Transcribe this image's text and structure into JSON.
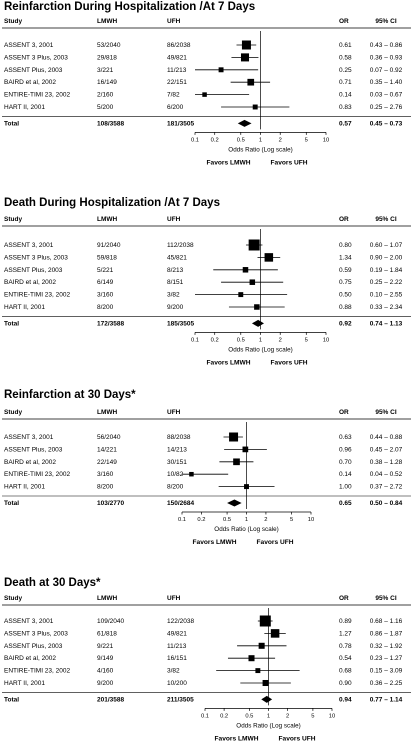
{
  "chart_data": [
    {
      "type": "forest",
      "title": "Reinfarction During Hospitalization /At 7 Days",
      "columns": [
        "Study",
        "LMWH",
        "UFH",
        "OR",
        "95% CI"
      ],
      "studies": [
        {
          "study": "ASSENT 3, 2001",
          "lmwh": "53/2040",
          "ufh": "86/2038",
          "or": 0.61,
          "or_label": "0.61",
          "ci": [
            0.43,
            0.86
          ],
          "ci_label": "0.43 – 0.86"
        },
        {
          "study": "ASSENT 3 Plus, 2003",
          "lmwh": "29/818",
          "ufh": "49/821",
          "or": 0.58,
          "or_label": "0.58",
          "ci": [
            0.36,
            0.93
          ],
          "ci_label": "0.36 – 0.93"
        },
        {
          "study": "ASSENT Plus, 2003",
          "lmwh": "3/221",
          "ufh": "11/213",
          "or": 0.25,
          "or_label": "0.25",
          "ci": [
            0.07,
            0.92
          ],
          "ci_label": "0.07 – 0.92"
        },
        {
          "study": "BAIRD et al, 2002",
          "lmwh": "16/149",
          "ufh": "22/151",
          "or": 0.71,
          "or_label": "0.71",
          "ci": [
            0.35,
            1.4
          ],
          "ci_label": "0.35 – 1.40"
        },
        {
          "study": "ENTIRE-TIMI 23, 2002",
          "lmwh": "2/160",
          "ufh": "7/82",
          "or": 0.14,
          "or_label": "0.14",
          "ci": [
            0.03,
            0.67
          ],
          "ci_label": "0.03 – 0.67"
        },
        {
          "study": "HART II, 2001",
          "lmwh": "5/200",
          "ufh": "6/200",
          "or": 0.83,
          "or_label": "0.83",
          "ci": [
            0.25,
            2.76
          ],
          "ci_label": "0.25 – 2.76"
        }
      ],
      "total": {
        "study": "Total",
        "lmwh": "108/3588",
        "ufh": "181/3505",
        "or": 0.57,
        "or_label": "0.57",
        "ci": [
          0.45,
          0.73
        ],
        "ci_label": "0.45 – 0.73"
      },
      "weights": [
        1.0,
        0.8,
        0.3,
        0.55,
        0.25,
        0.3
      ],
      "x_scale": "log",
      "xlim": [
        0.1,
        10
      ],
      "xticks": [
        "0.1",
        "0.2",
        "0.5",
        "1",
        "2",
        "5",
        "10"
      ],
      "xlabel": "Odds Ratio (Log scale)",
      "favors_left": "Favors LMWH",
      "favors_right": "Favors UFH"
    },
    {
      "type": "forest",
      "title": "Death During Hospitalization /At 7 Days",
      "columns": [
        "Study",
        "LMWH",
        "UFH",
        "OR",
        "95% CI"
      ],
      "studies": [
        {
          "study": "ASSENT 3, 2001",
          "lmwh": "91/2040",
          "ufh": "112/2038",
          "or": 0.8,
          "or_label": "0.80",
          "ci": [
            0.6,
            1.07
          ],
          "ci_label": "0.60 – 1.07"
        },
        {
          "study": "ASSENT 3 Plus, 2003",
          "lmwh": "59/818",
          "ufh": "45/821",
          "or": 1.34,
          "or_label": "1.34",
          "ci": [
            0.9,
            2.0
          ],
          "ci_label": "0.90 – 2.00"
        },
        {
          "study": "ASSENT Plus, 2003",
          "lmwh": "5/221",
          "ufh": "8/213",
          "or": 0.59,
          "or_label": "0.59",
          "ci": [
            0.19,
            1.84
          ],
          "ci_label": "0.19 – 1.84"
        },
        {
          "study": "BAIRD et al, 2002",
          "lmwh": "6/149",
          "ufh": "8/151",
          "or": 0.75,
          "or_label": "0.75",
          "ci": [
            0.25,
            2.22
          ],
          "ci_label": "0.25 – 2.22"
        },
        {
          "study": "ENTIRE-TIMI 23, 2002",
          "lmwh": "3/160",
          "ufh": "3/82",
          "or": 0.5,
          "or_label": "0.50",
          "ci": [
            0.1,
            2.55
          ],
          "ci_label": "0.10 – 2.55"
        },
        {
          "study": "HART II, 2001",
          "lmwh": "8/200",
          "ufh": "9/200",
          "or": 0.88,
          "or_label": "0.88",
          "ci": [
            0.33,
            2.34
          ],
          "ci_label": "0.33 – 2.34"
        }
      ],
      "total": {
        "study": "Total",
        "lmwh": "172/3588",
        "ufh": "185/3505",
        "or": 0.92,
        "or_label": "0.92",
        "ci": [
          0.74,
          1.13
        ],
        "ci_label": "0.74 – 1.13"
      },
      "weights": [
        1.0,
        0.6,
        0.25,
        0.25,
        0.2,
        0.25
      ],
      "x_scale": "log",
      "xlim": [
        0.1,
        10
      ],
      "xticks": [
        "0.1",
        "0.2",
        "0.5",
        "1",
        "2",
        "5",
        "10"
      ],
      "xlabel": "Odds Ratio (Log scale)",
      "favors_left": "Favors LMWH",
      "favors_right": "Favors UFH"
    },
    {
      "type": "forest",
      "title": "Reinfarction at 30 Days*",
      "columns": [
        "Study",
        "LMWH",
        "UFH",
        "OR",
        "95% CI"
      ],
      "studies": [
        {
          "study": "ASSENT 3, 2001",
          "lmwh": "56/2040",
          "ufh": "88/2038",
          "or": 0.63,
          "or_label": "0.63",
          "ci": [
            0.44,
            0.88
          ],
          "ci_label": "0.44 – 0.88"
        },
        {
          "study": "ASSENT Plus, 2003",
          "lmwh": "14/221",
          "ufh": "14/213",
          "or": 0.96,
          "or_label": "0.96",
          "ci": [
            0.45,
            2.07
          ],
          "ci_label": "0.45 – 2.07"
        },
        {
          "study": "BAIRD et al, 2002",
          "lmwh": "22/149",
          "ufh": "30/151",
          "or": 0.7,
          "or_label": "0.70",
          "ci": [
            0.38,
            1.28
          ],
          "ci_label": "0.38 – 1.28"
        },
        {
          "study": "ENTIRE-TIMI 23, 2002",
          "lmwh": "3/160",
          "ufh": "10/82",
          "or": 0.14,
          "or_label": "0.14",
          "ci": [
            0.04,
            0.52
          ],
          "ci_label": "0.04 – 0.52"
        },
        {
          "study": "HART II, 2001",
          "lmwh": "8/200",
          "ufh": "8/200",
          "or": 1.0,
          "or_label": "1.00",
          "ci": [
            0.37,
            2.72
          ],
          "ci_label": "0.37 – 2.72"
        }
      ],
      "total": {
        "study": "Total",
        "lmwh": "103/2770",
        "ufh": "150/2684",
        "or": 0.65,
        "or_label": "0.65",
        "ci": [
          0.5,
          0.84
        ],
        "ci_label": "0.50 – 0.84"
      },
      "weights": [
        1.0,
        0.4,
        0.55,
        0.25,
        0.3
      ],
      "x_scale": "log",
      "xlim": [
        0.1,
        10
      ],
      "xticks": [
        "0.1",
        "0.2",
        "0.5",
        "1",
        "2",
        "5",
        "10"
      ],
      "xlabel": "Odds Ratio (Log scale)",
      "favors_left": "Favors LMWH",
      "favors_right": "Favors UFH"
    },
    {
      "type": "forest",
      "title": "Death at 30 Days*",
      "columns": [
        "Study",
        "LMWH",
        "UFH",
        "OR",
        "95% CI"
      ],
      "studies": [
        {
          "study": "ASSENT 3, 2001",
          "lmwh": "109/2040",
          "ufh": "122/2038",
          "or": 0.89,
          "or_label": "0.89",
          "ci": [
            0.68,
            1.16
          ],
          "ci_label": "0.68 – 1.16"
        },
        {
          "study": "ASSENT 3 Plus, 2003",
          "lmwh": "61/818",
          "ufh": "49/821",
          "or": 1.27,
          "or_label": "1.27",
          "ci": [
            0.86,
            1.87
          ],
          "ci_label": "0.86 – 1.87"
        },
        {
          "study": "ASSENT Plus, 2003",
          "lmwh": "9/221",
          "ufh": "11/213",
          "or": 0.78,
          "or_label": "0.78",
          "ci": [
            0.32,
            1.92
          ],
          "ci_label": "0.32 – 1.92"
        },
        {
          "study": "BAIRD et al, 2002",
          "lmwh": "9/149",
          "ufh": "16/151",
          "or": 0.54,
          "or_label": "0.54",
          "ci": [
            0.23,
            1.27
          ],
          "ci_label": "0.23 – 1.27"
        },
        {
          "study": "ENTIRE-TIMI 23, 2002",
          "lmwh": "4/160",
          "ufh": "3/82",
          "or": 0.68,
          "or_label": "0.68",
          "ci": [
            0.15,
            3.09
          ],
          "ci_label": "0.15 – 3.09"
        },
        {
          "study": "HART II, 2001",
          "lmwh": "9/200",
          "ufh": "10/200",
          "or": 0.9,
          "or_label": "0.90",
          "ci": [
            0.36,
            2.25
          ],
          "ci_label": "0.36 – 2.25"
        }
      ],
      "total": {
        "study": "Total",
        "lmwh": "201/3588",
        "ufh": "211/3505",
        "or": 0.94,
        "or_label": "0.94",
        "ci": [
          0.77,
          1.14
        ],
        "ci_label": "0.77 – 1.14"
      },
      "weights": [
        1.0,
        0.6,
        0.3,
        0.3,
        0.2,
        0.3
      ],
      "x_scale": "log",
      "xlim": [
        0.1,
        10
      ],
      "xticks": [
        "0.1",
        "0.2",
        "0.5",
        "1",
        "2",
        "5",
        "10"
      ],
      "xlabel": "Odds Ratio (Log scale)",
      "favors_left": "Favors LMWH",
      "favors_right": "Favors UFH"
    }
  ]
}
